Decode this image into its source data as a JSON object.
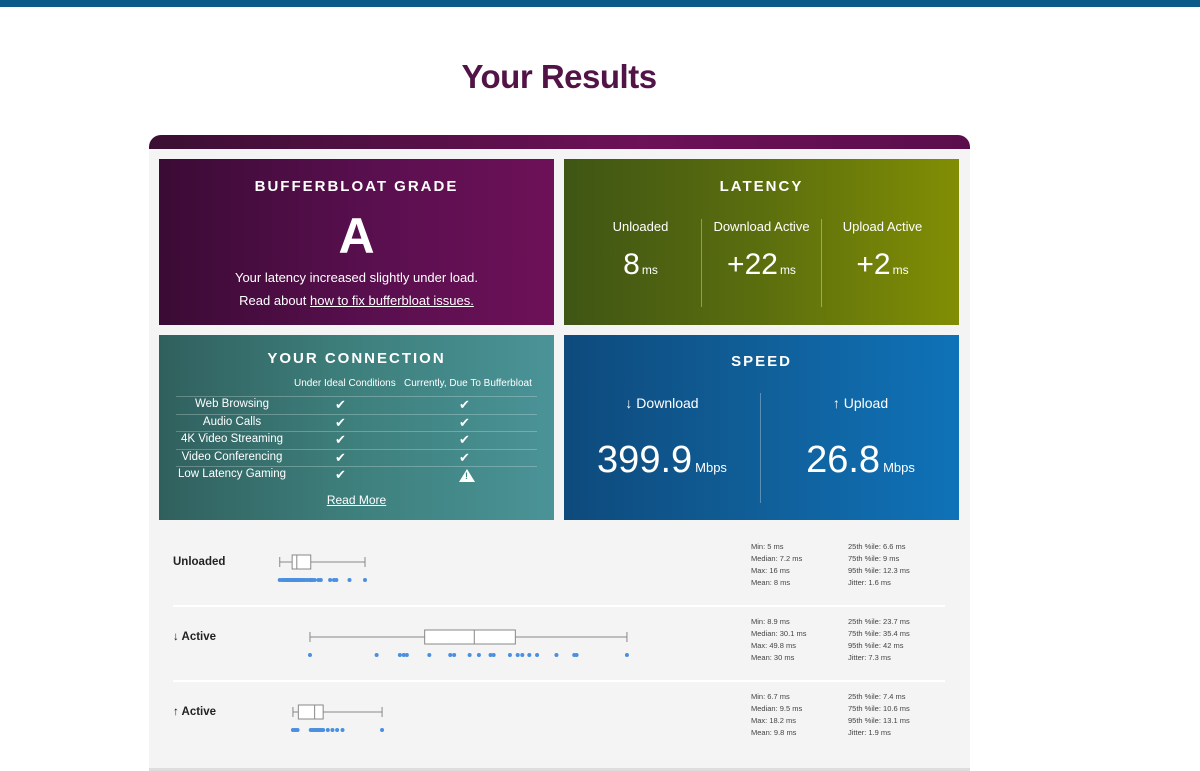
{
  "title": "Your Results",
  "grade": {
    "title": "BUFFERBLOAT GRADE",
    "letter": "A",
    "description": "Your latency increased slightly under load.",
    "read_prefix": "Read about ",
    "read_link": "how to fix bufferbloat issues."
  },
  "latency": {
    "title": "LATENCY",
    "unit": "ms",
    "columns": [
      {
        "label": "Unloaded",
        "value": "8"
      },
      {
        "label": "Download Active",
        "value": "+22"
      },
      {
        "label": "Upload Active",
        "value": "+2"
      }
    ]
  },
  "connection": {
    "title": "YOUR CONNECTION",
    "header_ideal": "Under Ideal Conditions",
    "header_current": "Currently, Due To Bufferbloat",
    "rows": [
      {
        "activity": "Web Browsing",
        "ideal": "check",
        "current": "check"
      },
      {
        "activity": "Audio Calls",
        "ideal": "check",
        "current": "check"
      },
      {
        "activity": "4K Video Streaming",
        "ideal": "check",
        "current": "check"
      },
      {
        "activity": "Video Conferencing",
        "ideal": "check",
        "current": "check"
      },
      {
        "activity": "Low Latency Gaming",
        "ideal": "check",
        "current": "warning"
      }
    ],
    "read_more": "Read More"
  },
  "speed": {
    "title": "SPEED",
    "unit": "Mbps",
    "download_label": "↓ Download",
    "download_value": "399.9",
    "upload_label": "↑ Upload",
    "upload_value": "26.8"
  },
  "boxplots": [
    {
      "label": "Unloaded",
      "min": 5,
      "q1": 6.6,
      "median": 7.2,
      "q3": 9,
      "max": 16,
      "points": [
        5,
        5.3,
        5.5,
        5.7,
        5.9,
        6,
        6.2,
        6.3,
        6.5,
        6.6,
        6.7,
        6.9,
        7,
        7.1,
        7.2,
        7.3,
        7.5,
        7.6,
        7.8,
        8,
        8.2,
        8.5,
        8.8,
        9,
        9.2,
        9.5,
        10,
        10.3,
        11.5,
        12,
        12.3,
        14,
        16
      ],
      "stats_left": [
        "Min: 5 ms",
        "Median: 7.2 ms",
        "Max: 16 ms",
        "Mean: 8 ms"
      ],
      "stats_right": [
        "25th %ile: 6.6 ms",
        "75th %ile: 9 ms",
        "95th %ile: 12.3 ms",
        "Jitter: 1.6 ms"
      ]
    },
    {
      "label": "↓ Active",
      "min": 8.9,
      "q1": 23.7,
      "median": 30.1,
      "q3": 35.4,
      "max": 49.8,
      "points": [
        8.9,
        17.5,
        20.5,
        21,
        21.4,
        24.3,
        27,
        27.5,
        29.5,
        30.7,
        32.2,
        32.6,
        34.7,
        35.7,
        36.3,
        37.2,
        38.2,
        40.7,
        43,
        43.3,
        49.8
      ],
      "stats_left": [
        "Min: 8.9 ms",
        "Median: 30.1 ms",
        "Max: 49.8 ms",
        "Mean: 30 ms"
      ],
      "stats_right": [
        "25th %ile: 23.7 ms",
        "75th %ile: 35.4 ms",
        "95th %ile: 42 ms",
        "Jitter: 7.3 ms"
      ]
    },
    {
      "label": "↑ Active",
      "min": 6.7,
      "q1": 7.4,
      "median": 9.5,
      "q3": 10.6,
      "max": 18.2,
      "points": [
        6.7,
        6.9,
        7.1,
        7.3,
        9,
        9.2,
        9.4,
        9.6,
        9.8,
        10,
        10.2,
        10.4,
        10.6,
        11.2,
        11.8,
        12.4,
        13.1,
        18.2
      ],
      "stats_left": [
        "Min: 6.7 ms",
        "Median: 9.5 ms",
        "Max: 18.2 ms",
        "Mean: 9.8 ms"
      ],
      "stats_right": [
        "25th %ile: 7.4 ms",
        "75th %ile: 10.6 ms",
        "95th %ile: 13.1 ms",
        "Jitter: 1.9 ms"
      ]
    }
  ],
  "colors": {
    "title": "#521447",
    "point": "#4a8fe0",
    "box_stroke": "#888888"
  }
}
